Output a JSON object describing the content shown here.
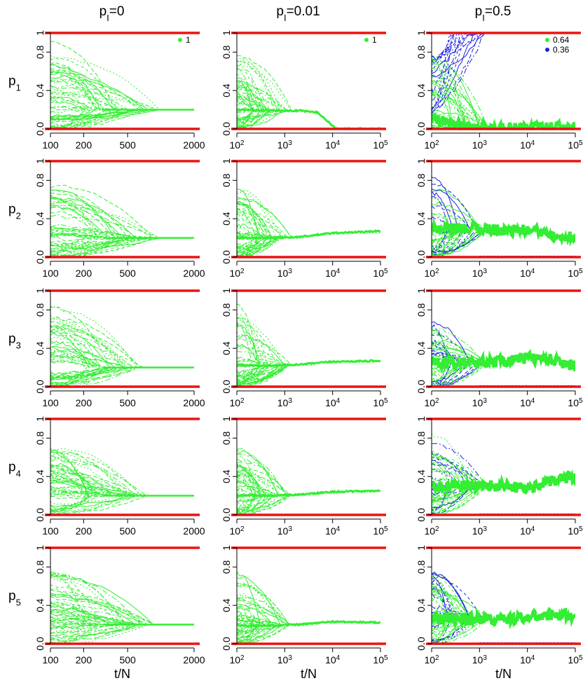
{
  "columns": [
    {
      "label_main": "p",
      "label_sub": "I",
      "label_tail": "=0"
    },
    {
      "label_main": "p",
      "label_sub": "I",
      "label_tail": "=0.01"
    },
    {
      "label_main": "p",
      "label_sub": "I",
      "label_tail": "=0.5"
    }
  ],
  "rows": [
    {
      "label_main": "p",
      "label_sub": "1"
    },
    {
      "label_main": "p",
      "label_sub": "2"
    },
    {
      "label_main": "p",
      "label_sub": "3"
    },
    {
      "label_main": "p",
      "label_sub": "4"
    },
    {
      "label_main": "p",
      "label_sub": "5"
    }
  ],
  "xlabel": "t/N",
  "colors": {
    "green": "#33ee33",
    "blue": "#2020e0",
    "red": "#ee1111"
  },
  "chart_data": [
    {
      "type": "line",
      "column": 0,
      "x_scale": "log",
      "xlim": [
        100,
        2000
      ],
      "x_ticks": [
        "100",
        "200",
        "500",
        "2000"
      ],
      "x_tick_values": [
        100,
        200,
        500,
        2000
      ],
      "ylim": [
        0,
        1
      ],
      "y_ticks": [
        "0.0",
        "0.4",
        "0.8",
        "1"
      ],
      "y_tick_values": [
        0,
        0.4,
        0.8,
        1
      ],
      "legend": [
        {
          "label": "1",
          "color": "#33ee33"
        }
      ],
      "reference_lines": [
        0,
        1
      ],
      "converged_value": [
        0.2,
        0.2,
        0.2,
        0.2,
        0.2
      ],
      "convergence_x": [
        1000,
        1000,
        750,
        800,
        900
      ]
    },
    {
      "type": "line",
      "column": 1,
      "x_scale": "log",
      "xlim": [
        100,
        100000
      ],
      "x_ticks": [
        "10^2",
        "10^3",
        "10^4",
        "10^5"
      ],
      "x_tick_values": [
        100,
        1000,
        10000,
        100000
      ],
      "ylim": [
        0,
        1
      ],
      "y_ticks": [
        "0.0",
        "0.4",
        "0.8",
        "1"
      ],
      "y_tick_values": [
        0,
        0.4,
        0.8,
        1
      ],
      "legend": [
        {
          "label": "1",
          "color": "#33ee33"
        }
      ],
      "reference_lines": [
        0,
        1
      ],
      "trend": [
        {
          "row": 1,
          "x": [
            100,
            500,
            2000,
            5000,
            10000,
            12000,
            100000
          ],
          "y": [
            0.2,
            0.19,
            0.19,
            0.17,
            0.03,
            0.0,
            0.0
          ]
        },
        {
          "row": 2,
          "x": [
            100,
            500,
            2000,
            10000,
            100000
          ],
          "y": [
            0.2,
            0.2,
            0.21,
            0.25,
            0.27
          ]
        },
        {
          "row": 3,
          "x": [
            100,
            500,
            2000,
            10000,
            100000
          ],
          "y": [
            0.22,
            0.22,
            0.23,
            0.26,
            0.27
          ]
        },
        {
          "row": 4,
          "x": [
            100,
            500,
            2000,
            10000,
            100000
          ],
          "y": [
            0.2,
            0.2,
            0.21,
            0.24,
            0.25
          ]
        },
        {
          "row": 5,
          "x": [
            100,
            500,
            2000,
            10000,
            100000
          ],
          "y": [
            0.19,
            0.19,
            0.2,
            0.23,
            0.22
          ]
        }
      ]
    },
    {
      "type": "line",
      "column": 2,
      "x_scale": "log",
      "xlim": [
        100,
        100000
      ],
      "x_ticks": [
        "10^2",
        "10^3",
        "10^4",
        "10^5"
      ],
      "x_tick_values": [
        100,
        1000,
        10000,
        100000
      ],
      "ylim": [
        0,
        1
      ],
      "y_ticks": [
        "0.0",
        "0.4",
        "0.8",
        "1"
      ],
      "y_tick_values": [
        0,
        0.4,
        0.8,
        1
      ],
      "legend": [
        {
          "label": "0.64",
          "color": "#33ee33"
        },
        {
          "label": "0.36",
          "color": "#2020e0"
        }
      ],
      "reference_lines": [
        0,
        1
      ],
      "trend": [
        {
          "row": 1,
          "x": [
            100,
            500,
            1000,
            100000
          ],
          "y": [
            0.1,
            0.02,
            0.01,
            0.01
          ]
        },
        {
          "row": 2,
          "x": [
            100,
            1000,
            3000,
            10000,
            30000,
            100000
          ],
          "y": [
            0.28,
            0.3,
            0.28,
            0.28,
            0.25,
            0.2
          ]
        },
        {
          "row": 3,
          "x": [
            100,
            1000,
            3000,
            10000,
            30000,
            100000
          ],
          "y": [
            0.25,
            0.25,
            0.27,
            0.3,
            0.28,
            0.22
          ]
        },
        {
          "row": 4,
          "x": [
            100,
            1000,
            3000,
            10000,
            30000,
            100000
          ],
          "y": [
            0.3,
            0.3,
            0.3,
            0.28,
            0.35,
            0.4
          ]
        },
        {
          "row": 5,
          "x": [
            100,
            1000,
            3000,
            10000,
            30000,
            100000
          ],
          "y": [
            0.25,
            0.27,
            0.25,
            0.28,
            0.3,
            0.3
          ]
        }
      ]
    }
  ]
}
